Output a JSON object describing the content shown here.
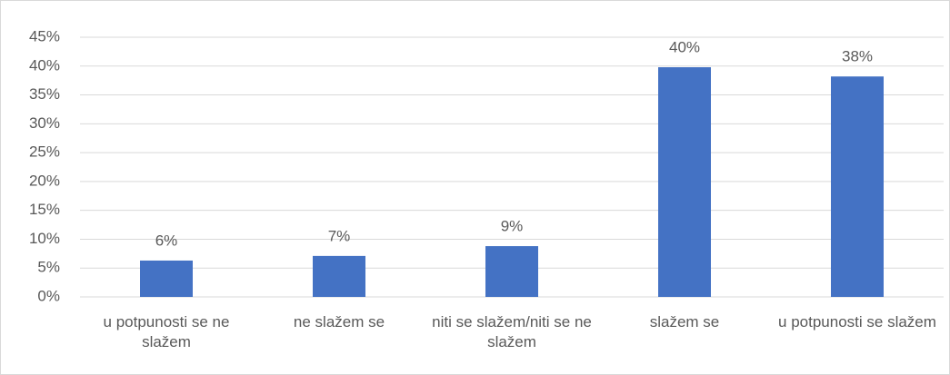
{
  "chart_data": {
    "type": "bar",
    "categories": [
      "u potpunosti se ne slažem",
      "ne slažem se",
      "niti se slažem/niti se ne slažem",
      "slažem se",
      "u potpunosti se slažem"
    ],
    "values": [
      6.3,
      7.1,
      8.8,
      39.8,
      38.2
    ],
    "value_labels": [
      "6%",
      "7%",
      "9%",
      "40%",
      "38%"
    ],
    "color": "#4472c4",
    "ylim": [
      0,
      45
    ],
    "yticks": [
      {
        "value": 0,
        "label": "0%"
      },
      {
        "value": 5,
        "label": "5%"
      },
      {
        "value": 10,
        "label": "10%"
      },
      {
        "value": 15,
        "label": "15%"
      },
      {
        "value": 20,
        "label": "20%"
      },
      {
        "value": 25,
        "label": "25%"
      },
      {
        "value": 30,
        "label": "30%"
      },
      {
        "value": 35,
        "label": "35%"
      },
      {
        "value": 40,
        "label": "40%"
      },
      {
        "value": 45,
        "label": "45%"
      }
    ],
    "grid": true
  }
}
